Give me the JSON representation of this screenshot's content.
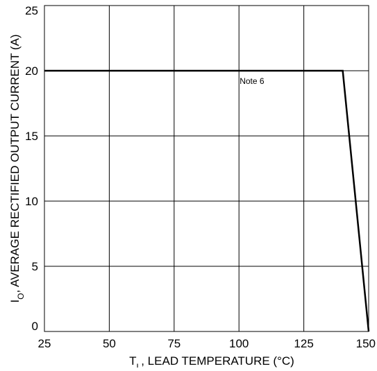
{
  "chart_data": {
    "type": "line",
    "xlabel_main": "T",
    "xlabel_sub": "L",
    "xlabel_rest": ", LEAD TEMPERATURE (°C)",
    "ylabel_main": "I",
    "ylabel_sub": "O",
    "ylabel_rest": ", AVERAGE RECTIFIED OUTPUT CURRENT (A)",
    "xlim": [
      25,
      150
    ],
    "ylim": [
      0,
      25
    ],
    "x_ticks": [
      25,
      50,
      75,
      100,
      125,
      150
    ],
    "y_ticks": [
      0,
      5,
      10,
      15,
      20,
      25
    ],
    "grid": true,
    "series": [
      {
        "x": [
          25,
          140,
          150
        ],
        "y": [
          20,
          20,
          0
        ]
      }
    ],
    "annotations": [
      {
        "text": "Note 6",
        "x": 105,
        "y": 19
      }
    ]
  }
}
